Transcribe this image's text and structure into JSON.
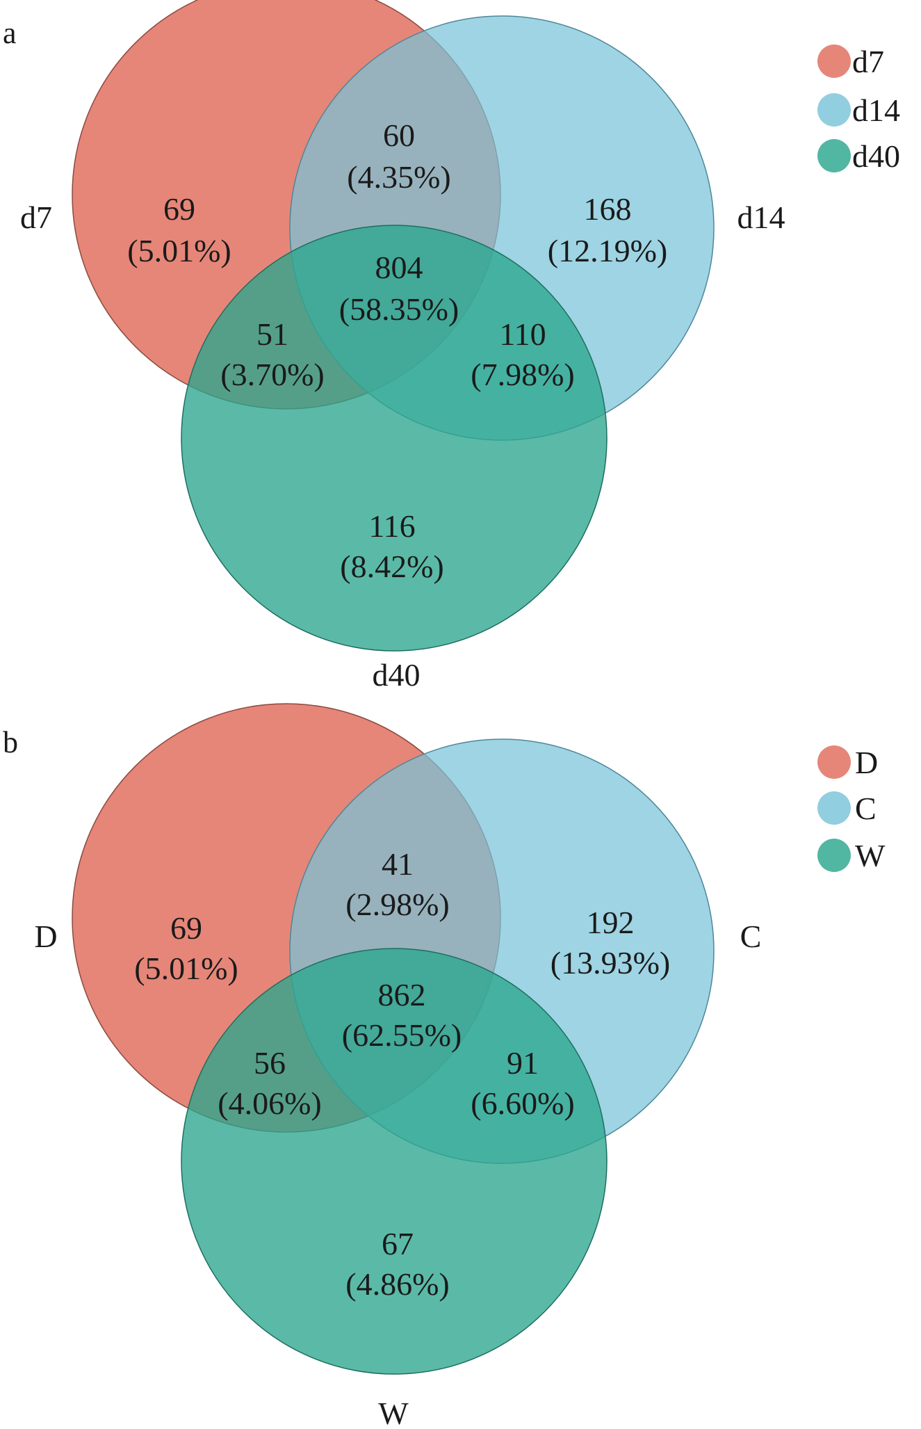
{
  "panels": [
    {
      "letter": "a",
      "sets": [
        {
          "label": "d7",
          "color": "#E06B5A"
        },
        {
          "label": "d14",
          "color": "#79C3D8"
        },
        {
          "label": "d40",
          "color": "#2BA68E"
        }
      ],
      "regions": {
        "only_1": {
          "count": "69",
          "pct": "(5.01%)"
        },
        "only_2": {
          "count": "168",
          "pct": "(12.19%)"
        },
        "only_3": {
          "count": "116",
          "pct": "(8.42%)"
        },
        "r12": {
          "count": "60",
          "pct": "(4.35%)"
        },
        "r13": {
          "count": "51",
          "pct": "(3.70%)"
        },
        "r23": {
          "count": "110",
          "pct": "(7.98%)"
        },
        "r123": {
          "count": "804",
          "pct": "(58.35%)"
        }
      }
    },
    {
      "letter": "b",
      "sets": [
        {
          "label": "D",
          "color": "#E06B5A"
        },
        {
          "label": "C",
          "color": "#79C3D8"
        },
        {
          "label": "W",
          "color": "#2BA68E"
        }
      ],
      "regions": {
        "only_1": {
          "count": "69",
          "pct": "(5.01%)"
        },
        "only_2": {
          "count": "192",
          "pct": "(13.93%)"
        },
        "only_3": {
          "count": "67",
          "pct": "(4.86%)"
        },
        "r12": {
          "count": "41",
          "pct": "(2.98%)"
        },
        "r13": {
          "count": "56",
          "pct": "(4.06%)"
        },
        "r23": {
          "count": "91",
          "pct": "(6.60%)"
        },
        "r123": {
          "count": "862",
          "pct": "(62.55%)"
        }
      }
    }
  ]
}
